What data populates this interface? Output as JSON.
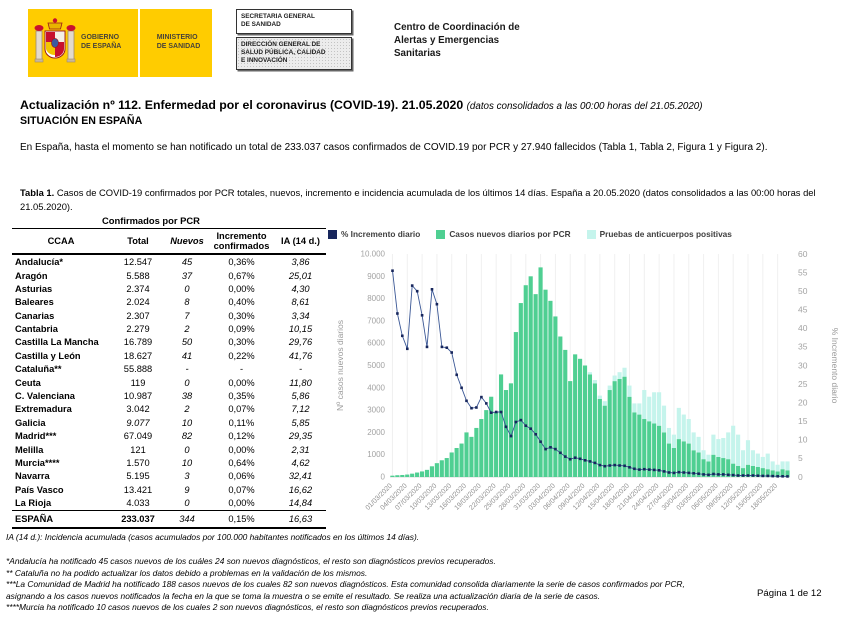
{
  "header": {
    "gobierno_lines": [
      "GOBIERNO",
      "DE ESPAÑA"
    ],
    "ministerio_lines": [
      "MINISTERIO",
      "DE SANIDAD"
    ],
    "secretaria_lines": [
      "SECRETARIA GENERAL",
      "DE SANIDAD"
    ],
    "direccion_lines": [
      "DIRECCIÓN GENERAL DE",
      "SALUD PÚBLICA, CALIDAD",
      "E INNOVACIÓN"
    ],
    "ccaes_lines": [
      "Centro de Coordinación de",
      "Alertas y Emergencias",
      "Sanitarias"
    ]
  },
  "title": {
    "main": "Actualización nº 112. Enfermedad por el coronavirus (COVID-19). 21.05.2020 ",
    "subtitle_italic": "(datos consolidados a las 00:00 horas del 21.05.2020)",
    "section": "SITUACIÓN EN ESPAÑA"
  },
  "intro": "En España, hasta el momento se han notificado un total de 233.037 casos confirmados de COVID.19 por PCR y 27.940 fallecidos (Tabla 1, Tabla 2, Figura 1 y Figura 2).",
  "table": {
    "caption_bold": "Tabla 1.",
    "caption_rest": " Casos de COVID-19 confirmados por PCR totales, nuevos, incremento e incidencia acumulada de los últimos 14 días. España a 20.05.2020 (datos consolidados a las 00:00 horas del 21.05.2020).",
    "group_header": "Confirmados por PCR",
    "columns": [
      "CCAA",
      "Total",
      "Nuevos",
      "Incremento confirmados",
      "IA (14 d.)"
    ],
    "rows": [
      {
        "ccaa": "Andalucía*",
        "total": "12.547",
        "nuevos": "45",
        "incremento": "0,36%",
        "ia": "3,86"
      },
      {
        "ccaa": "Aragón",
        "total": "5.588",
        "nuevos": "37",
        "incremento": "0,67%",
        "ia": "25,01"
      },
      {
        "ccaa": "Asturias",
        "total": "2.374",
        "nuevos": "0",
        "incremento": "0,00%",
        "ia": "4,30"
      },
      {
        "ccaa": "Baleares",
        "total": "2.024",
        "nuevos": "8",
        "incremento": "0,40%",
        "ia": "8,61"
      },
      {
        "ccaa": "Canarias",
        "total": "2.307",
        "nuevos": "7",
        "incremento": "0,30%",
        "ia": "3,34"
      },
      {
        "ccaa": "Cantabria",
        "total": "2.279",
        "nuevos": "2",
        "incremento": "0,09%",
        "ia": "10,15"
      },
      {
        "ccaa": "Castilla La Mancha",
        "total": "16.789",
        "nuevos": "50",
        "incremento": "0,30%",
        "ia": "29,76"
      },
      {
        "ccaa": "Castilla y León",
        "total": "18.627",
        "nuevos": "41",
        "incremento": "0,22%",
        "ia": "41,76"
      },
      {
        "ccaa": "Cataluña**",
        "total": "55.888",
        "nuevos": "-",
        "incremento": "-",
        "ia": "-"
      },
      {
        "ccaa": "Ceuta",
        "total": "119",
        "nuevos": "0",
        "incremento": "0,00%",
        "ia": "11,80"
      },
      {
        "ccaa": "C. Valenciana",
        "total": "10.987",
        "nuevos": "38",
        "incremento": "0,35%",
        "ia": "5,86"
      },
      {
        "ccaa": "Extremadura",
        "total": "3.042",
        "nuevos": "2",
        "incremento": "0,07%",
        "ia": "7,12"
      },
      {
        "ccaa": "Galicia",
        "total": "9.077",
        "nuevos": "10",
        "incremento": "0,11%",
        "ia": "5,85",
        "italic_total": true
      },
      {
        "ccaa": "Madrid***",
        "total": "67.049",
        "nuevos": "82",
        "incremento": "0,12%",
        "ia": "29,35"
      },
      {
        "ccaa": "Melilla",
        "total": "121",
        "nuevos": "0",
        "incremento": "0,00%",
        "ia": "2,31"
      },
      {
        "ccaa": "Murcia****",
        "total": "1.570",
        "nuevos": "10",
        "incremento": "0,64%",
        "ia": "4,62"
      },
      {
        "ccaa": "Navarra",
        "total": "5.195",
        "nuevos": "3",
        "incremento": "0,06%",
        "ia": "32,41"
      },
      {
        "ccaa": "País Vasco",
        "total": "13.421",
        "nuevos": "9",
        "incremento": "0,07%",
        "ia": "16,62"
      },
      {
        "ccaa": "La Rioja",
        "total": "4.033",
        "nuevos": "0",
        "incremento": "0,00%",
        "ia": "14,84"
      }
    ],
    "total_row": {
      "ccaa": "ESPAÑA",
      "total": "233.037",
      "nuevos": "344",
      "incremento": "0,15%",
      "ia": "16,63"
    },
    "footnote": "IA (14 d.): Incidencia acumulada (casos acumulados por 100.000 habitantes notificados en los últimos 14 días)."
  },
  "chart_data": {
    "type": "combo",
    "title": "",
    "x": [
      "01/03/2020",
      "02/03/2020",
      "03/03/2020",
      "04/03/2020",
      "05/03/2020",
      "06/03/2020",
      "07/03/2020",
      "08/03/2020",
      "09/03/2020",
      "10/03/2020",
      "11/03/2020",
      "12/03/2020",
      "13/03/2020",
      "14/03/2020",
      "15/03/2020",
      "16/03/2020",
      "17/03/2020",
      "18/03/2020",
      "19/03/2020",
      "20/03/2020",
      "21/03/2020",
      "22/03/2020",
      "23/03/2020",
      "24/03/2020",
      "25/03/2020",
      "26/03/2020",
      "27/03/2020",
      "28/03/2020",
      "29/03/2020",
      "30/03/2020",
      "31/03/2020",
      "01/04/2020",
      "02/04/2020",
      "03/04/2020",
      "04/04/2020",
      "05/04/2020",
      "06/04/2020",
      "07/04/2020",
      "08/04/2020",
      "09/04/2020",
      "10/04/2020",
      "11/04/2020",
      "12/04/2020",
      "13/04/2020",
      "14/04/2020",
      "15/04/2020",
      "16/04/2020",
      "17/04/2020",
      "18/04/2020",
      "19/04/2020",
      "20/04/2020",
      "21/04/2020",
      "22/04/2020",
      "23/04/2020",
      "24/04/2020",
      "25/04/2020",
      "26/04/2020",
      "27/04/2020",
      "28/04/2020",
      "29/04/2020",
      "30/04/2020",
      "01/05/2020",
      "02/05/2020",
      "03/05/2020",
      "04/05/2020",
      "05/05/2020",
      "06/05/2020",
      "07/05/2020",
      "08/05/2020",
      "09/05/2020",
      "10/05/2020",
      "11/05/2020",
      "12/05/2020",
      "13/05/2020",
      "14/05/2020",
      "15/05/2020",
      "16/05/2020",
      "17/05/2020",
      "18/05/2020",
      "19/05/2020",
      "20/05/2020"
    ],
    "label_every": 3,
    "series": [
      {
        "name": "Casos nuevos diarios por PCR",
        "type": "bar",
        "stack": true,
        "values": [
          60,
          80,
          90,
          110,
          150,
          200,
          250,
          320,
          480,
          620,
          750,
          850,
          1100,
          1300,
          1500,
          2000,
          1800,
          2200,
          2600,
          3000,
          3600,
          2900,
          4600,
          3900,
          4200,
          6500,
          7800,
          8600,
          9000,
          8200,
          9400,
          8400,
          7900,
          7200,
          6300,
          5700,
          4300,
          5500,
          5300,
          5000,
          4600,
          4200,
          3500,
          3200,
          3900,
          4300,
          4400,
          4500,
          3600,
          2900,
          2800,
          2600,
          2500,
          2400,
          2300,
          2000,
          1500,
          1300,
          1700,
          1600,
          1500,
          1200,
          1100,
          800,
          700,
          1000,
          900,
          850,
          800,
          600,
          500,
          400,
          550,
          500,
          450,
          400,
          350,
          300,
          250,
          350,
          300
        ]
      },
      {
        "name": "Pruebas de anticuerpos positivas",
        "type": "bar",
        "stack": true,
        "values": [
          0,
          0,
          0,
          0,
          0,
          0,
          0,
          0,
          0,
          0,
          0,
          0,
          0,
          0,
          0,
          0,
          0,
          0,
          0,
          0,
          0,
          0,
          0,
          0,
          0,
          0,
          0,
          0,
          0,
          0,
          0,
          0,
          0,
          0,
          0,
          0,
          0,
          0,
          0,
          0,
          100,
          150,
          150,
          200,
          200,
          250,
          300,
          400,
          500,
          400,
          500,
          1300,
          1100,
          1400,
          1500,
          1200,
          700,
          600,
          1400,
          1200,
          1100,
          800,
          700,
          400,
          300,
          900,
          800,
          900,
          1200,
          1700,
          1400,
          800,
          1100,
          700,
          600,
          500,
          700,
          400,
          300,
          350,
          400
        ]
      },
      {
        "name": "% Incremento diario",
        "type": "line",
        "axis": "right",
        "values": [
          55.5,
          44,
          38,
          34.5,
          51.5,
          50,
          43.5,
          35,
          50.5,
          46.5,
          35,
          34.8,
          33.5,
          27.5,
          24,
          20.5,
          18.5,
          18.7,
          21.5,
          19.8,
          17.3,
          17.5,
          17.5,
          13.5,
          11,
          14.8,
          15.3,
          13.8,
          13,
          11.5,
          9.5,
          7.5,
          8,
          7.5,
          6.5,
          5.5,
          4.8,
          5.2,
          4.9,
          4.5,
          4.2,
          3.8,
          3.2,
          2.9,
          3.1,
          3.2,
          3.1,
          3.0,
          2.6,
          2.2,
          2.0,
          2.1,
          2.0,
          1.9,
          1.8,
          1.5,
          1.2,
          1.1,
          1.3,
          1.2,
          1.1,
          1.0,
          0.9,
          0.7,
          0.6,
          0.8,
          0.7,
          0.7,
          0.6,
          0.5,
          0.4,
          0.4,
          0.4,
          0.4,
          0.35,
          0.3,
          0.3,
          0.25,
          0.2,
          0.2,
          0.15
        ]
      }
    ],
    "left_axis": {
      "min": 0,
      "max": 10000,
      "step": 1000,
      "top_label": "10.000",
      "title": "Nº casos nuevos diarios"
    },
    "right_axis": {
      "min": 0,
      "max": 60,
      "step": 5,
      "title": "% Incremento diario"
    },
    "legend": [
      "% Incremento diario",
      "Casos nuevos diarios por PCR",
      "Pruebas de anticuerpos positivas"
    ],
    "legend_position": "top",
    "grid": "vertical-faint",
    "colors": {
      "bar_pcr": "#4fcf92",
      "bar_antibody": "#c5f4ec",
      "line": "#3a5795",
      "marker": "#17265c"
    }
  },
  "footnotes": [
    "*Andalucía ha notificado 45 casos nuevos de los cuáles 24 son nuevos diagnósticos, el resto son diagnósticos previos recuperados.",
    "** Cataluña no ha podido actualizar los datos debido a problemas en la validación de los mismos.",
    "***La Comunidad de Madrid ha notificado 188 casos nuevos de los cuales 82 son nuevos diagnósticos. Esta comunidad consolida diariamente la serie de casos confirmados por PCR, asignando a los casos nuevos notificados la fecha en la que se toma la muestra o se emite el resultado. Se realiza una actualización diaria de la serie de casos.",
    "****Murcia ha notificado 10 casos nuevos de los cuales 2 son nuevos diagnósticos, el resto son diagnósticos previos recuperados."
  ],
  "page_number": "Página 1 de 12"
}
